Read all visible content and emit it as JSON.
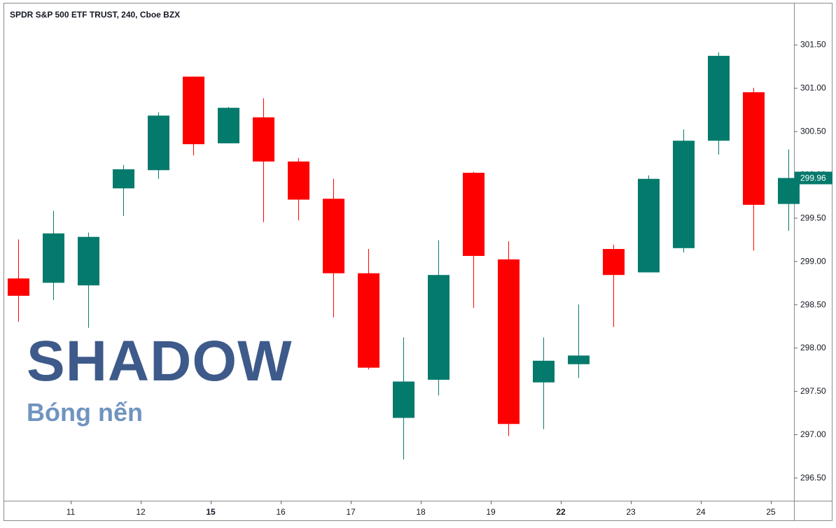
{
  "header": {
    "title": "SPDR S&P 500 ETF TRUST, 240, Cboe BZX"
  },
  "overlay": {
    "headline": "SHADOW",
    "subheadline": "Bóng nến"
  },
  "colors": {
    "up": "#047a6c",
    "down": "#ff0000",
    "axis": "#666666",
    "text": "#131722",
    "price_tag_bg": "#047a6c",
    "price_tag_text": "#ffffff"
  },
  "chart_data": {
    "type": "candlestick",
    "title": "SPDR S&P 500 ETF TRUST, 240, Cboe BZX",
    "ylim": [
      296.25,
      301.95
    ],
    "y_ticks": [
      "296.50",
      "297.00",
      "297.50",
      "298.00",
      "298.50",
      "299.00",
      "299.50",
      "300.00",
      "300.50",
      "301.00",
      "301.50"
    ],
    "x_labels": [
      {
        "label": "11",
        "bar": 1.5,
        "bold": false
      },
      {
        "label": "12",
        "bar": 3.5,
        "bold": false
      },
      {
        "label": "15",
        "bar": 5.5,
        "bold": true
      },
      {
        "label": "16",
        "bar": 7.5,
        "bold": false
      },
      {
        "label": "17",
        "bar": 9.5,
        "bold": false
      },
      {
        "label": "18",
        "bar": 11.5,
        "bold": false
      },
      {
        "label": "19",
        "bar": 13.5,
        "bold": false
      },
      {
        "label": "22",
        "bar": 15.5,
        "bold": true
      },
      {
        "label": "23",
        "bar": 17.5,
        "bold": false
      },
      {
        "label": "24",
        "bar": 19.5,
        "bold": false
      },
      {
        "label": "25",
        "bar": 21.5,
        "bold": false
      }
    ],
    "last_price": "299.96",
    "candles": [
      {
        "open": 298.8,
        "high": 299.25,
        "low": 298.3,
        "close": 298.6
      },
      {
        "open": 298.75,
        "high": 299.58,
        "low": 298.55,
        "close": 299.32
      },
      {
        "open": 298.72,
        "high": 299.33,
        "low": 298.23,
        "close": 299.28
      },
      {
        "open": 299.84,
        "high": 300.11,
        "low": 299.52,
        "close": 300.06
      },
      {
        "open": 300.05,
        "high": 300.72,
        "low": 299.95,
        "close": 300.68
      },
      {
        "open": 301.13,
        "high": 301.13,
        "low": 300.22,
        "close": 300.35
      },
      {
        "open": 300.36,
        "high": 300.78,
        "low": 300.36,
        "close": 300.77
      },
      {
        "open": 300.66,
        "high": 300.88,
        "low": 299.45,
        "close": 300.15
      },
      {
        "open": 300.15,
        "high": 300.19,
        "low": 299.47,
        "close": 299.71
      },
      {
        "open": 299.72,
        "high": 299.95,
        "low": 298.35,
        "close": 298.86
      },
      {
        "open": 298.86,
        "high": 299.14,
        "low": 297.75,
        "close": 297.77
      },
      {
        "open": 297.19,
        "high": 298.12,
        "low": 296.71,
        "close": 297.61
      },
      {
        "open": 297.63,
        "high": 299.24,
        "low": 297.45,
        "close": 298.84
      },
      {
        "open": 300.02,
        "high": 300.03,
        "low": 298.46,
        "close": 299.06
      },
      {
        "open": 299.02,
        "high": 299.23,
        "low": 296.98,
        "close": 297.12
      },
      {
        "open": 297.6,
        "high": 298.12,
        "low": 297.06,
        "close": 297.85
      },
      {
        "open": 297.81,
        "high": 298.5,
        "low": 297.65,
        "close": 297.91
      },
      {
        "open": 299.14,
        "high": 299.19,
        "low": 298.24,
        "close": 298.84
      },
      {
        "open": 298.87,
        "high": 299.99,
        "low": 298.87,
        "close": 299.95
      },
      {
        "open": 299.15,
        "high": 300.52,
        "low": 299.1,
        "close": 300.39
      },
      {
        "open": 300.39,
        "high": 301.41,
        "low": 300.23,
        "close": 301.37
      },
      {
        "open": 300.95,
        "high": 301.0,
        "low": 299.12,
        "close": 299.65
      },
      {
        "open": 299.66,
        "high": 300.29,
        "low": 299.35,
        "close": 299.96
      }
    ]
  }
}
